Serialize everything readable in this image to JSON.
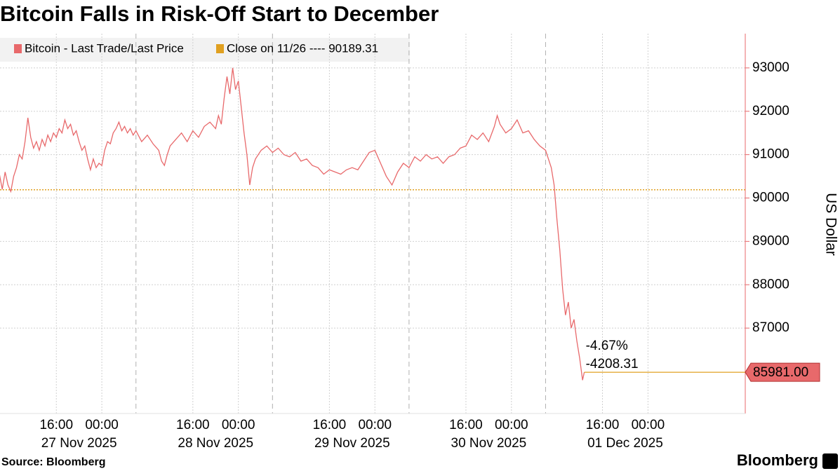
{
  "chart_data": {
    "type": "line",
    "title": "Bitcoin Falls in Risk-Off Start to December",
    "source": "Source: Bloomberg",
    "brand": "Bloomberg",
    "y_label": "US Dollar",
    "series": [
      {
        "name": "Bitcoin - Last Trade/Last Price",
        "color": "#e8696b",
        "x": [
          6,
          6.5,
          7,
          7.5,
          8,
          8.5,
          9,
          9.5,
          10,
          10.5,
          11,
          11.5,
          12,
          12.5,
          13,
          13.5,
          14,
          14.5,
          15,
          15.5,
          16,
          16.5,
          17,
          17.5,
          18,
          18.5,
          19,
          19.5,
          20,
          20.5,
          21,
          21.5,
          22,
          22.5,
          23,
          23.5,
          24,
          24.5,
          25,
          25.5,
          26,
          26.5,
          27,
          27.5,
          28,
          28.5,
          29,
          29.5,
          30,
          31,
          32,
          33,
          34,
          34.5,
          35,
          35.5,
          36,
          37,
          38,
          39,
          40,
          41,
          42,
          43,
          44,
          44.5,
          45,
          45.5,
          46,
          46.5,
          47,
          47.5,
          48,
          48.5,
          49,
          49.5,
          50,
          50.5,
          51,
          52,
          53,
          54,
          55,
          56,
          57,
          58,
          59,
          60,
          61,
          62,
          63,
          64,
          65,
          66,
          67,
          68,
          69,
          70,
          71,
          72,
          73,
          74,
          75,
          76,
          77,
          78,
          79,
          80,
          81,
          82,
          83,
          84,
          85,
          86,
          87,
          88,
          89,
          90,
          91,
          92,
          93,
          93.5,
          94,
          95,
          96,
          97,
          98,
          99,
          100,
          101,
          102,
          102.5,
          103,
          103.5,
          104,
          104.5,
          105,
          105.5,
          106,
          106.5,
          107,
          107.5,
          108,
          108.5,
          108.8
        ],
        "values": [
          90550,
          90200,
          90600,
          90300,
          90150,
          90500,
          90700,
          91000,
          90900,
          91300,
          91850,
          91400,
          91150,
          91300,
          91100,
          91350,
          91200,
          91450,
          91300,
          91500,
          91400,
          91600,
          91500,
          91800,
          91600,
          91700,
          91450,
          91550,
          91300,
          91100,
          91200,
          90900,
          90650,
          90900,
          90700,
          90800,
          90750,
          91100,
          91300,
          91250,
          91500,
          91600,
          91750,
          91550,
          91650,
          91500,
          91600,
          91450,
          91550,
          91300,
          91450,
          91250,
          91100,
          90850,
          90750,
          91000,
          91200,
          91350,
          91500,
          91300,
          91550,
          91400,
          91650,
          91750,
          91600,
          91900,
          91700,
          92300,
          92800,
          92400,
          93000,
          92500,
          92700,
          92100,
          91500,
          91000,
          90300,
          90700,
          90900,
          91100,
          91200,
          91050,
          91150,
          91000,
          90950,
          91050,
          90850,
          90900,
          90750,
          90700,
          90550,
          90650,
          90600,
          90550,
          90650,
          90700,
          90650,
          90850,
          91050,
          91100,
          90800,
          90500,
          90300,
          90600,
          90800,
          90700,
          90950,
          90850,
          91000,
          90900,
          90950,
          90800,
          90950,
          91000,
          91150,
          91200,
          91450,
          91350,
          91500,
          91300,
          91650,
          91900,
          91700,
          91500,
          91600,
          91800,
          91500,
          91550,
          91350,
          91200,
          91100,
          90900,
          90700,
          90300,
          89500,
          88800,
          87900,
          87300,
          87600,
          87000,
          87200,
          86700,
          86300,
          85800,
          85981
        ]
      }
    ],
    "reference": {
      "name": "Close on 11/26 ---- 90189.31",
      "value": 90189.31,
      "color": "#e0a020"
    },
    "last_price": {
      "value": 85981,
      "label": "85981.00"
    },
    "annotations": [
      "-4.67%",
      "-4208.31"
    ],
    "xlim": [
      6.1,
      137.1
    ],
    "ylim": [
      85030,
      93790
    ],
    "yticks": [
      87000,
      88000,
      89000,
      90000,
      91000,
      92000,
      93000
    ],
    "xticks": [
      {
        "value": 16,
        "label": "16:00"
      },
      {
        "value": 24,
        "label": "00:00"
      },
      {
        "value": 40,
        "label": "16:00"
      },
      {
        "value": 48,
        "label": "00:00"
      },
      {
        "value": 64,
        "label": "16:00"
      },
      {
        "value": 72,
        "label": "00:00"
      },
      {
        "value": 88,
        "label": "16:00"
      },
      {
        "value": 96,
        "label": "00:00"
      },
      {
        "value": 112,
        "label": "16:00"
      },
      {
        "value": 120,
        "label": "00:00"
      }
    ],
    "xdates": [
      {
        "value": 20,
        "label": "27 Nov 2025"
      },
      {
        "value": 44,
        "label": "28 Nov 2025"
      },
      {
        "value": 68,
        "label": "29 Nov 2025"
      },
      {
        "value": 92,
        "label": "30 Nov 2025"
      },
      {
        "value": 116,
        "label": "01 Dec 2025"
      }
    ],
    "session_breaks": [
      30,
      54,
      78,
      102
    ],
    "grid": true
  }
}
